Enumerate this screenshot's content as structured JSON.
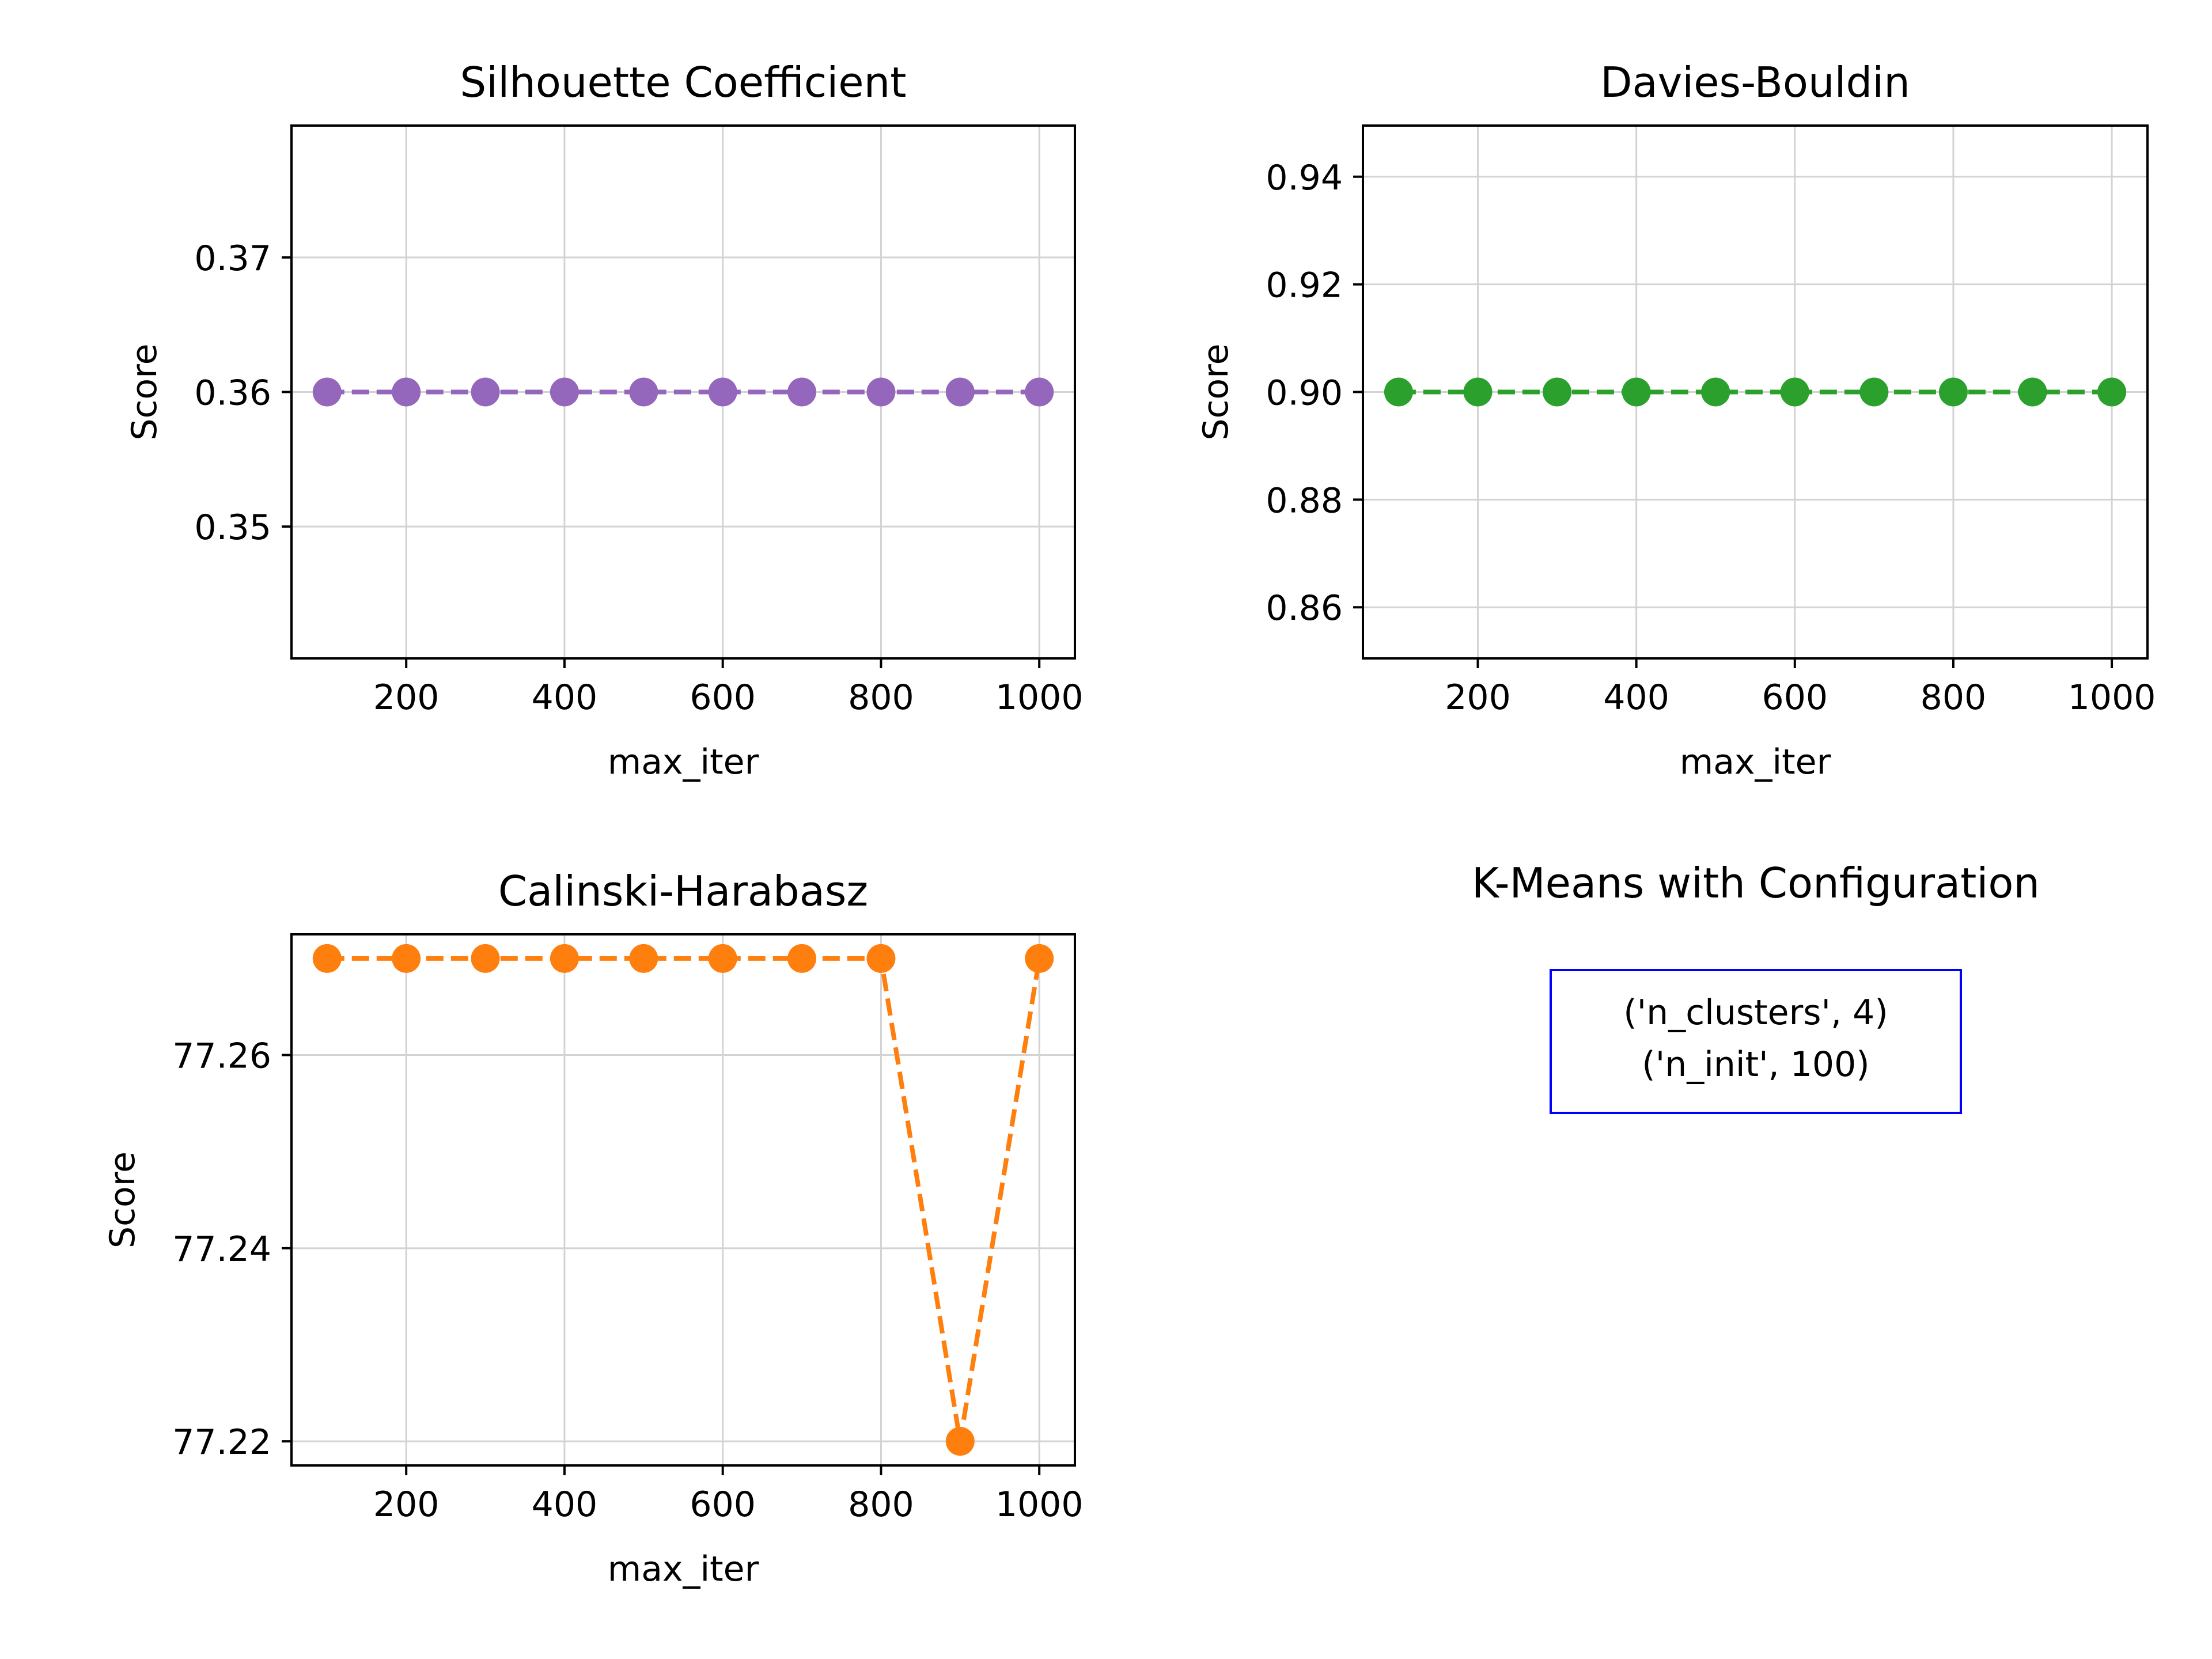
{
  "chart_data": [
    {
      "type": "line",
      "title": "Silhouette Coefficient",
      "xlabel": "max_iter",
      "ylabel": "Score",
      "x": [
        100,
        200,
        300,
        400,
        500,
        600,
        700,
        800,
        900,
        1000
      ],
      "series": [
        {
          "values": [
            0.36,
            0.36,
            0.36,
            0.36,
            0.36,
            0.36,
            0.36,
            0.36,
            0.36,
            0.36
          ],
          "color": "#9467bd"
        }
      ],
      "xlim": [
        55,
        1045
      ],
      "ylim": [
        0.3402,
        0.3798
      ],
      "xticks": [
        200,
        400,
        600,
        800,
        1000
      ],
      "xtick_labels": [
        "200",
        "400",
        "600",
        "800",
        "1000"
      ],
      "yticks": [
        0.35,
        0.36,
        0.37
      ],
      "ytick_labels": [
        "0.35",
        "0.36",
        "0.37"
      ],
      "line_style": "dashed",
      "marker": "circle",
      "grid": true
    },
    {
      "type": "line",
      "title": "Davies-Bouldin",
      "xlabel": "max_iter",
      "ylabel": "Score",
      "x": [
        100,
        200,
        300,
        400,
        500,
        600,
        700,
        800,
        900,
        1000
      ],
      "series": [
        {
          "values": [
            0.9,
            0.9,
            0.9,
            0.9,
            0.9,
            0.9,
            0.9,
            0.9,
            0.9,
            0.9
          ],
          "color": "#2ca02c"
        }
      ],
      "xlim": [
        55,
        1045
      ],
      "ylim": [
        0.8505,
        0.9495
      ],
      "xticks": [
        200,
        400,
        600,
        800,
        1000
      ],
      "xtick_labels": [
        "200",
        "400",
        "600",
        "800",
        "1000"
      ],
      "yticks": [
        0.86,
        0.88,
        0.9,
        0.92,
        0.94
      ],
      "ytick_labels": [
        "0.86",
        "0.88",
        "0.90",
        "0.92",
        "0.94"
      ],
      "line_style": "dashed",
      "marker": "circle",
      "grid": true
    },
    {
      "type": "line",
      "title": "Calinski-Harabasz",
      "xlabel": "max_iter",
      "ylabel": "Score",
      "x": [
        100,
        200,
        300,
        400,
        500,
        600,
        700,
        800,
        900,
        1000
      ],
      "series": [
        {
          "values": [
            77.27,
            77.27,
            77.27,
            77.27,
            77.27,
            77.27,
            77.27,
            77.27,
            77.22,
            77.27
          ],
          "color": "#ff7f0e"
        }
      ],
      "xlim": [
        55,
        1045
      ],
      "ylim": [
        77.2175,
        77.2725
      ],
      "xticks": [
        200,
        400,
        600,
        800,
        1000
      ],
      "xtick_labels": [
        "200",
        "400",
        "600",
        "800",
        "1000"
      ],
      "yticks": [
        77.22,
        77.24,
        77.26
      ],
      "ytick_labels": [
        "77.22",
        "77.24",
        "77.26"
      ],
      "line_style": "dashed",
      "marker": "circle",
      "grid": true
    }
  ],
  "config_panel": {
    "title": "K-Means with Configuration",
    "lines": [
      "('n_clusters', 4)",
      "('n_init', 100)"
    ],
    "border_color": "#0000ff"
  },
  "style": {
    "grid_color": "#d3d3d3",
    "axis_color": "#000000"
  }
}
